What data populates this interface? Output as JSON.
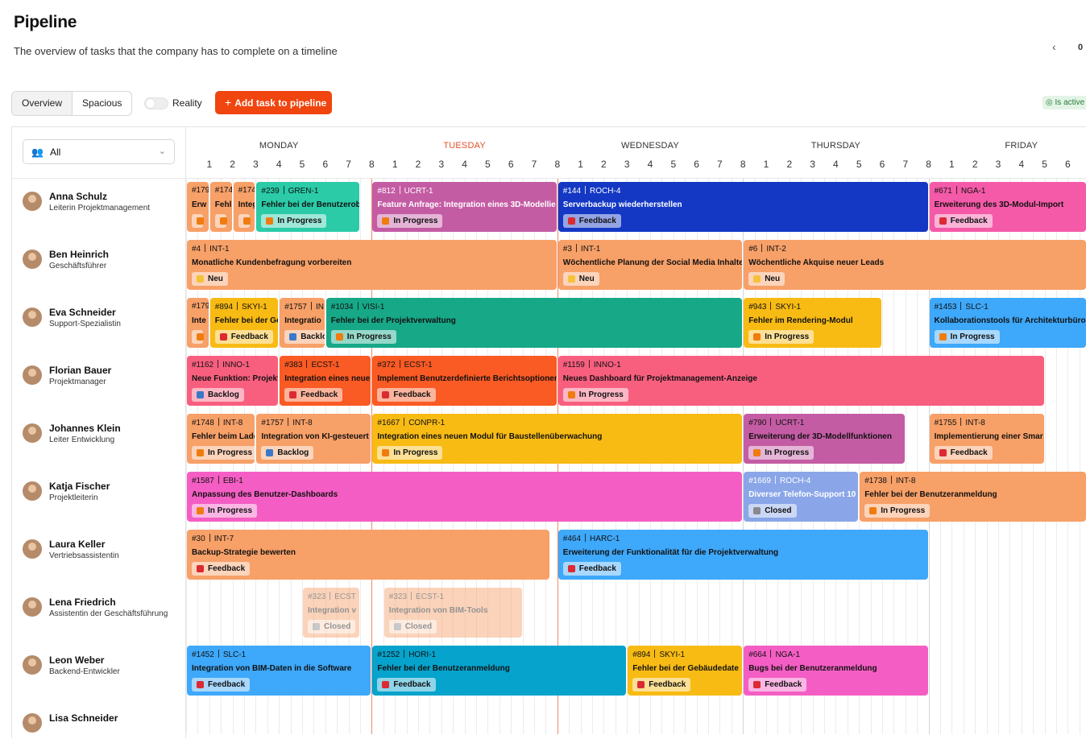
{
  "page": {
    "title": "Pipeline",
    "subtitle": "The overview of tasks that the company has to complete on a timeline",
    "date_partial": "0",
    "prev_icon": "chevron-left-icon"
  },
  "toolbar": {
    "view_overview": "Overview",
    "view_spacious": "Spacious",
    "reality_label": "Reality",
    "add_task_icon": "+",
    "add_task_label": "Add task to pipeline",
    "active_badge": "Is active"
  },
  "filter": {
    "value": "All",
    "icon": "people-icon",
    "chevron": "chevron-down-icon"
  },
  "days": [
    "MONDAY",
    "TUESDAY",
    "WEDNESDAY",
    "THURSDAY",
    "FRIDAY"
  ],
  "today_index": 1,
  "hours": [
    "1",
    "2",
    "3",
    "4",
    "5",
    "6",
    "7",
    "8"
  ],
  "status_colors": {
    "In Progress": "#f07c0f",
    "Feedback": "#dc2a32",
    "Neu": "#f6c238",
    "Backlog": "#3a78c9",
    "Closed": "#8a8a8a"
  },
  "users": [
    {
      "name": "Anna Schulz",
      "role": "Leiterin Projektmanagement"
    },
    {
      "name": "Ben Heinrich",
      "role": "Geschäftsführer"
    },
    {
      "name": "Eva Schneider",
      "role": "Support-Spezialistin"
    },
    {
      "name": "Florian Bauer",
      "role": "Projektmanager"
    },
    {
      "name": "Johannes Klein",
      "role": "Leiter Entwicklung"
    },
    {
      "name": "Katja Fischer",
      "role": "Projektleiterin"
    },
    {
      "name": "Laura Keller",
      "role": "Vertriebsassistentin"
    },
    {
      "name": "Lena Friedrich",
      "role": "Assistentin der Geschäftsführung"
    },
    {
      "name": "Leon Weber",
      "role": "Backend-Entwickler"
    },
    {
      "name": "Lisa Schneider",
      "role": ""
    }
  ],
  "tasks": [
    {
      "row": 0,
      "start": 0,
      "end": 1,
      "id": "#179",
      "tag": "",
      "title": "Erw",
      "status": "",
      "color": "#f7a068"
    },
    {
      "row": 0,
      "start": 1,
      "end": 2,
      "id": "#174",
      "tag": "",
      "title": "Fehl",
      "status": "",
      "color": "#f7a068"
    },
    {
      "row": 0,
      "start": 2,
      "end": 3,
      "id": "#174",
      "tag": "",
      "title": "Integ",
      "status": "",
      "color": "#f7a068"
    },
    {
      "row": 0,
      "start": 3,
      "end": 7.5,
      "id": "#239",
      "tag": "GREN-1",
      "title": "Fehler bei der Benutzerob",
      "status": "In Progress",
      "color": "#2bcba8"
    },
    {
      "row": 0,
      "start": 8,
      "end": 16,
      "id": "#812",
      "tag": "UCRT-1",
      "title": "Feature Anfrage: Integration eines 3D-Modellie",
      "status": "In Progress",
      "color": "#c45ca4",
      "light": true
    },
    {
      "row": 0,
      "start": 16,
      "end": 32,
      "id": "#144",
      "tag": "ROCH-4",
      "title": "Serverbackup wiederherstellen",
      "status": "Feedback",
      "color": "#1438c4",
      "light": true
    },
    {
      "row": 0,
      "start": 32,
      "end": 40,
      "id": "#671",
      "tag": "NGA-1",
      "title": "Erweiterung des 3D-Modul-Import",
      "status": "Feedback",
      "color": "#f45aa8"
    },
    {
      "row": 1,
      "start": 0,
      "end": 16,
      "id": "#4",
      "tag": "INT-1",
      "title": "Monatliche Kundenbefragung vorbereiten",
      "status": "Neu",
      "color": "#f7a068"
    },
    {
      "row": 1,
      "start": 16,
      "end": 24,
      "id": "#3",
      "tag": "INT-1",
      "title": "Wöchentliche Planung der Social Media Inhalte",
      "status": "Neu",
      "color": "#f7a068"
    },
    {
      "row": 1,
      "start": 24,
      "end": 40,
      "id": "#6",
      "tag": "INT-2",
      "title": "Wöchentliche Akquise neuer Leads",
      "status": "Neu",
      "color": "#f7a068"
    },
    {
      "row": 2,
      "start": 0,
      "end": 1,
      "id": "#179",
      "tag": "",
      "title": "Inte",
      "status": "",
      "color": "#f7a068"
    },
    {
      "row": 2,
      "start": 1,
      "end": 4,
      "id": "#894",
      "tag": "SKYI-1",
      "title": "Fehler bei der Ge",
      "status": "Feedback",
      "color": "#f8bb14"
    },
    {
      "row": 2,
      "start": 4,
      "end": 6,
      "id": "#1757",
      "tag": "IN",
      "title": "Integratio",
      "status": "Backlo",
      "color": "#f7a068"
    },
    {
      "row": 2,
      "start": 6,
      "end": 24,
      "id": "#1034",
      "tag": "VISI-1",
      "title": "Fehler bei der Projektverwaltung",
      "status": "In Progress",
      "color": "#17a888"
    },
    {
      "row": 2,
      "start": 24,
      "end": 30,
      "id": "#943",
      "tag": "SKYI-1",
      "title": "Fehler im Rendering-Modul",
      "status": "In Progress",
      "color": "#f8bb14"
    },
    {
      "row": 2,
      "start": 32,
      "end": 40,
      "id": "#1453",
      "tag": "SLC-1",
      "title": "Kollaborationstools für Architekturbüros",
      "status": "In Progress",
      "color": "#3ea8fa"
    },
    {
      "row": 3,
      "start": 0,
      "end": 4,
      "id": "#1162",
      "tag": "INNO-1",
      "title": "Neue Funktion: Projekt",
      "status": "Backlog",
      "color": "#f85f7f"
    },
    {
      "row": 3,
      "start": 4,
      "end": 8,
      "id": "#383",
      "tag": "ECST-1",
      "title": "Integration eines neue",
      "status": "Feedback",
      "color": "#fa5a24"
    },
    {
      "row": 3,
      "start": 8,
      "end": 16,
      "id": "#372",
      "tag": "ECST-1",
      "title": "Implement Benutzerdefinierte Berichtsoptionen",
      "status": "Feedback",
      "color": "#fa5a24"
    },
    {
      "row": 3,
      "start": 16,
      "end": 37,
      "id": "#1159",
      "tag": "INNO-1",
      "title": "Neues Dashboard für Projektmanagement-Anzeige",
      "status": "In Progress",
      "color": "#f85f7f"
    },
    {
      "row": 4,
      "start": 0,
      "end": 3,
      "id": "#1748",
      "tag": "INT-8",
      "title": "Fehler beim Lade",
      "status": "In Progress",
      "color": "#f7a068"
    },
    {
      "row": 4,
      "start": 3,
      "end": 8,
      "id": "#1757",
      "tag": "INT-8",
      "title": "Integration von KI-gesteuert",
      "status": "Backlog",
      "color": "#f7a068"
    },
    {
      "row": 4,
      "start": 8,
      "end": 24,
      "id": "#1667",
      "tag": "CONPR-1",
      "title": "Integration eines neuen Modul für Baustellenüberwachung",
      "status": "In Progress",
      "color": "#f8bb14"
    },
    {
      "row": 4,
      "start": 24,
      "end": 31,
      "id": "#790",
      "tag": "UCRT-1",
      "title": "Erweiterung der 3D-Modellfunktionen",
      "status": "In Progress",
      "color": "#c45ca4"
    },
    {
      "row": 4,
      "start": 32,
      "end": 37,
      "id": "#1755",
      "tag": "INT-8",
      "title": "Implementierung einer Smar",
      "status": "Feedback",
      "color": "#f7a068"
    },
    {
      "row": 5,
      "start": 0,
      "end": 24,
      "id": "#1587",
      "tag": "EBI-1",
      "title": "Anpassung des Benutzer-Dashboards",
      "status": "In Progress",
      "color": "#f45ec4"
    },
    {
      "row": 5,
      "start": 24,
      "end": 29,
      "id": "#1669",
      "tag": "ROCH-4",
      "title": "Diverser Telefon-Support 10",
      "status": "Closed",
      "color": "#8aa6e8",
      "light": true
    },
    {
      "row": 5,
      "start": 29,
      "end": 40,
      "id": "#1738",
      "tag": "INT-8",
      "title": "Fehler bei der Benutzeranmeldung",
      "status": "In Progress",
      "color": "#f7a068"
    },
    {
      "row": 6,
      "start": 0,
      "end": 15.7,
      "id": "#30",
      "tag": "INT-7",
      "title": "Backup-Strategie bewerten",
      "status": "Feedback",
      "color": "#f7a068"
    },
    {
      "row": 6,
      "start": 16,
      "end": 32,
      "id": "#464",
      "tag": "HARC-1",
      "title": "Erweiterung der Funktionalität für die Projektverwaltung",
      "status": "Feedback",
      "color": "#3ea8fa"
    },
    {
      "row": 7,
      "start": 5,
      "end": 7.5,
      "id": "#323",
      "tag": "ECST",
      "title": "Integration v",
      "status": "Closed",
      "color": "#f7a068",
      "faded": true
    },
    {
      "row": 7,
      "start": 8.5,
      "end": 14.5,
      "id": "#323",
      "tag": "ECST-1",
      "title": "Integration von BIM-Tools",
      "status": "Closed",
      "color": "#f7a068",
      "faded": true
    },
    {
      "row": 8,
      "start": 0,
      "end": 8,
      "id": "#1452",
      "tag": "SLC-1",
      "title": "Integration von BIM-Daten in die Software",
      "status": "Feedback",
      "color": "#3ea8fa"
    },
    {
      "row": 8,
      "start": 8,
      "end": 19,
      "id": "#1252",
      "tag": "HORI-1",
      "title": "Fehler bei der Benutzeranmeldung",
      "status": "Feedback",
      "color": "#06a3cc"
    },
    {
      "row": 8,
      "start": 19,
      "end": 24,
      "id": "#894",
      "tag": "SKYI-1",
      "title": "Fehler bei der Gebäudedate",
      "status": "Feedback",
      "color": "#f8bb14"
    },
    {
      "row": 8,
      "start": 24,
      "end": 32,
      "id": "#664",
      "tag": "NGA-1",
      "title": "Bugs bei der Benutzeranmeldung",
      "status": "Feedback",
      "color": "#f45ec4"
    }
  ]
}
